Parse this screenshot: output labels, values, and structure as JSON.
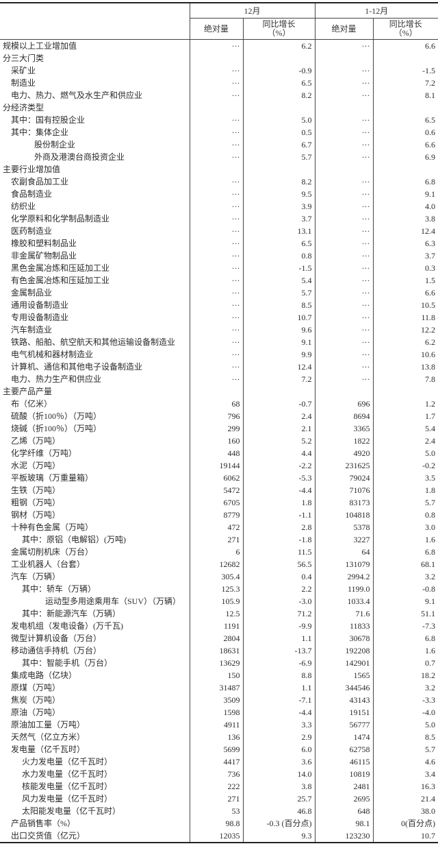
{
  "header": {
    "group_month": "12月",
    "group_ytd": "1-12月",
    "col_abs": "绝对量",
    "col_yoy_line1": "同比增长",
    "col_yoy_line2": "（%）"
  },
  "rows": [
    {
      "label": "规模以上工业增加值",
      "level": 0,
      "m_abs": "···",
      "m_yoy": "6.2",
      "y_abs": "···",
      "y_yoy": "6.6"
    },
    {
      "label": "分三大门类",
      "level": 0,
      "m_abs": "",
      "m_yoy": "",
      "y_abs": "",
      "y_yoy": ""
    },
    {
      "label": "采矿业",
      "level": 1,
      "m_abs": "···",
      "m_yoy": "-0.9",
      "y_abs": "···",
      "y_yoy": "-1.5"
    },
    {
      "label": "制造业",
      "level": 1,
      "m_abs": "···",
      "m_yoy": "6.5",
      "y_abs": "···",
      "y_yoy": "7.2"
    },
    {
      "label": "电力、热力、燃气及水生产和供应业",
      "level": 1,
      "m_abs": "···",
      "m_yoy": "8.2",
      "y_abs": "···",
      "y_yoy": "8.1"
    },
    {
      "label": "分经济类型",
      "level": 0,
      "m_abs": "",
      "m_yoy": "",
      "y_abs": "",
      "y_yoy": ""
    },
    {
      "label": "其中：国有控股企业",
      "level": 1,
      "m_abs": "···",
      "m_yoy": "5.0",
      "y_abs": "···",
      "y_yoy": "6.5"
    },
    {
      "label": "其中：集体企业",
      "level": 1,
      "m_abs": "···",
      "m_yoy": "0.5",
      "y_abs": "···",
      "y_yoy": "0.6"
    },
    {
      "label": "股份制企业",
      "level": 3,
      "m_abs": "···",
      "m_yoy": "6.7",
      "y_abs": "···",
      "y_yoy": "6.6"
    },
    {
      "label": "外商及港澳台商投资企业",
      "level": 3,
      "m_abs": "···",
      "m_yoy": "5.7",
      "y_abs": "···",
      "y_yoy": "6.9"
    },
    {
      "label": "主要行业增加值",
      "level": 0,
      "m_abs": "",
      "m_yoy": "",
      "y_abs": "",
      "y_yoy": ""
    },
    {
      "label": "农副食品加工业",
      "level": 1,
      "m_abs": "···",
      "m_yoy": "8.2",
      "y_abs": "···",
      "y_yoy": "6.8"
    },
    {
      "label": "食品制造业",
      "level": 1,
      "m_abs": "···",
      "m_yoy": "9.5",
      "y_abs": "···",
      "y_yoy": "9.1"
    },
    {
      "label": "纺织业",
      "level": 1,
      "m_abs": "···",
      "m_yoy": "3.9",
      "y_abs": "···",
      "y_yoy": "4.0"
    },
    {
      "label": "化学原料和化学制品制造业",
      "level": 1,
      "m_abs": "···",
      "m_yoy": "3.7",
      "y_abs": "···",
      "y_yoy": "3.8"
    },
    {
      "label": "医药制造业",
      "level": 1,
      "m_abs": "···",
      "m_yoy": "13.1",
      "y_abs": "···",
      "y_yoy": "12.4"
    },
    {
      "label": "橡胶和塑料制品业",
      "level": 1,
      "m_abs": "···",
      "m_yoy": "6.5",
      "y_abs": "···",
      "y_yoy": "6.3"
    },
    {
      "label": "非金属矿物制品业",
      "level": 1,
      "m_abs": "···",
      "m_yoy": "0.8",
      "y_abs": "···",
      "y_yoy": "3.7"
    },
    {
      "label": "黑色金属冶炼和压延加工业",
      "level": 1,
      "m_abs": "···",
      "m_yoy": "-1.5",
      "y_abs": "···",
      "y_yoy": "0.3"
    },
    {
      "label": "有色金属冶炼和压延加工业",
      "level": 1,
      "m_abs": "···",
      "m_yoy": "5.4",
      "y_abs": "···",
      "y_yoy": "1.5"
    },
    {
      "label": "金属制品业",
      "level": 1,
      "m_abs": "···",
      "m_yoy": "5.7",
      "y_abs": "···",
      "y_yoy": "6.6"
    },
    {
      "label": "通用设备制造业",
      "level": 1,
      "m_abs": "···",
      "m_yoy": "8.5",
      "y_abs": "···",
      "y_yoy": "10.5"
    },
    {
      "label": "专用设备制造业",
      "level": 1,
      "m_abs": "···",
      "m_yoy": "10.7",
      "y_abs": "···",
      "y_yoy": "11.8"
    },
    {
      "label": "汽车制造业",
      "level": 1,
      "m_abs": "···",
      "m_yoy": "9.6",
      "y_abs": "···",
      "y_yoy": "12.2"
    },
    {
      "label": "铁路、船舶、航空航天和其他运输设备制造业",
      "level": 1,
      "m_abs": "···",
      "m_yoy": "9.1",
      "y_abs": "···",
      "y_yoy": "6.2"
    },
    {
      "label": "电气机械和器材制造业",
      "level": 1,
      "m_abs": "···",
      "m_yoy": "9.9",
      "y_abs": "···",
      "y_yoy": "10.6"
    },
    {
      "label": "计算机、通信和其他电子设备制造业",
      "level": 1,
      "m_abs": "···",
      "m_yoy": "12.4",
      "y_abs": "···",
      "y_yoy": "13.8"
    },
    {
      "label": "电力、热力生产和供应业",
      "level": 1,
      "m_abs": "···",
      "m_yoy": "7.2",
      "y_abs": "···",
      "y_yoy": "7.8"
    },
    {
      "label": "主要产品产量",
      "level": 0,
      "m_abs": "",
      "m_yoy": "",
      "y_abs": "",
      "y_yoy": ""
    },
    {
      "label": "布（亿米）",
      "level": 1,
      "m_abs": "68",
      "m_yoy": "-0.7",
      "y_abs": "696",
      "y_yoy": "1.2"
    },
    {
      "label": "硫酸（折100％）（万吨）",
      "level": 1,
      "m_abs": "796",
      "m_yoy": "2.4",
      "y_abs": "8694",
      "y_yoy": "1.7"
    },
    {
      "label": "烧碱（折100％）（万吨）",
      "level": 1,
      "m_abs": "299",
      "m_yoy": "2.1",
      "y_abs": "3365",
      "y_yoy": "5.4"
    },
    {
      "label": "乙烯（万吨）",
      "level": 1,
      "m_abs": "160",
      "m_yoy": "5.2",
      "y_abs": "1822",
      "y_yoy": "2.4"
    },
    {
      "label": "化学纤维（万吨）",
      "level": 1,
      "m_abs": "448",
      "m_yoy": "4.4",
      "y_abs": "4920",
      "y_yoy": "5.0"
    },
    {
      "label": "水泥（万吨）",
      "level": 1,
      "m_abs": "19144",
      "m_yoy": "-2.2",
      "y_abs": "231625",
      "y_yoy": "-0.2"
    },
    {
      "label": "平板玻璃（万重量箱）",
      "level": 1,
      "m_abs": "6062",
      "m_yoy": "-5.3",
      "y_abs": "79024",
      "y_yoy": "3.5"
    },
    {
      "label": "生铁（万吨）",
      "level": 1,
      "m_abs": "5472",
      "m_yoy": "-4.4",
      "y_abs": "71076",
      "y_yoy": "1.8"
    },
    {
      "label": "粗钢（万吨）",
      "level": 1,
      "m_abs": "6705",
      "m_yoy": "1.8",
      "y_abs": "83173",
      "y_yoy": "5.7"
    },
    {
      "label": "钢材（万吨）",
      "level": 1,
      "m_abs": "8779",
      "m_yoy": "-1.1",
      "y_abs": "104818",
      "y_yoy": "0.8"
    },
    {
      "label": "十种有色金属（万吨）",
      "level": 1,
      "m_abs": "472",
      "m_yoy": "2.8",
      "y_abs": "5378",
      "y_yoy": "3.0"
    },
    {
      "label": "其中：原铝（电解铝）(万吨)",
      "level": 2,
      "m_abs": "271",
      "m_yoy": "-1.8",
      "y_abs": "3227",
      "y_yoy": "1.6"
    },
    {
      "label": "金属切削机床（万台）",
      "level": 1,
      "m_abs": "6",
      "m_yoy": "11.5",
      "y_abs": "64",
      "y_yoy": "6.8"
    },
    {
      "label": "工业机器人（台套）",
      "level": 1,
      "m_abs": "12682",
      "m_yoy": "56.5",
      "y_abs": "131079",
      "y_yoy": "68.1"
    },
    {
      "label": "汽车（万辆）",
      "level": 1,
      "m_abs": "305.4",
      "m_yoy": "0.4",
      "y_abs": "2994.2",
      "y_yoy": "3.2"
    },
    {
      "label": "其中：轿车（万辆）",
      "level": 2,
      "m_abs": "125.3",
      "m_yoy": "2.2",
      "y_abs": "1199.0",
      "y_yoy": "-0.8"
    },
    {
      "label": "运动型多用途乘用车（SUV）（万辆）",
      "level": 4,
      "m_abs": "105.9",
      "m_yoy": "-3.0",
      "y_abs": "1033.4",
      "y_yoy": "9.1"
    },
    {
      "label": "其中：新能源汽车（万辆）",
      "level": 2,
      "m_abs": "12.5",
      "m_yoy": "71.2",
      "y_abs": "71.6",
      "y_yoy": "51.1"
    },
    {
      "label": "发电机组（发电设备）(万千瓦)",
      "level": 1,
      "m_abs": "1191",
      "m_yoy": "-9.9",
      "y_abs": "11833",
      "y_yoy": "-7.3"
    },
    {
      "label": "微型计算机设备（万台）",
      "level": 1,
      "m_abs": "2804",
      "m_yoy": "1.1",
      "y_abs": "30678",
      "y_yoy": "6.8"
    },
    {
      "label": "移动通信手持机（万台）",
      "level": 1,
      "m_abs": "18631",
      "m_yoy": "-13.7",
      "y_abs": "192208",
      "y_yoy": "1.6"
    },
    {
      "label": "其中：智能手机（万台）",
      "level": 2,
      "m_abs": "13629",
      "m_yoy": "-6.9",
      "y_abs": "142901",
      "y_yoy": "0.7"
    },
    {
      "label": "集成电路（亿块）",
      "level": 1,
      "m_abs": "150",
      "m_yoy": "8.8",
      "y_abs": "1565",
      "y_yoy": "18.2"
    },
    {
      "label": "原煤（万吨）",
      "level": 1,
      "m_abs": "31487",
      "m_yoy": "1.1",
      "y_abs": "344546",
      "y_yoy": "3.2"
    },
    {
      "label": "焦炭（万吨）",
      "level": 1,
      "m_abs": "3509",
      "m_yoy": "-7.1",
      "y_abs": "43143",
      "y_yoy": "-3.3"
    },
    {
      "label": "原油（万吨）",
      "level": 1,
      "m_abs": "1598",
      "m_yoy": "-4.4",
      "y_abs": "19151",
      "y_yoy": "-4.0"
    },
    {
      "label": "原油加工量（万吨）",
      "level": 1,
      "m_abs": "4911",
      "m_yoy": "3.3",
      "y_abs": "56777",
      "y_yoy": "5.0"
    },
    {
      "label": "天然气（亿立方米）",
      "level": 1,
      "m_abs": "136",
      "m_yoy": "2.9",
      "y_abs": "1474",
      "y_yoy": "8.5"
    },
    {
      "label": "发电量（亿千瓦时）",
      "level": 1,
      "m_abs": "5699",
      "m_yoy": "6.0",
      "y_abs": "62758",
      "y_yoy": "5.7"
    },
    {
      "label": "火力发电量（亿千瓦时）",
      "level": 2,
      "m_abs": "4417",
      "m_yoy": "3.6",
      "y_abs": "46115",
      "y_yoy": "4.6"
    },
    {
      "label": "水力发电量（亿千瓦时）",
      "level": 2,
      "m_abs": "736",
      "m_yoy": "14.0",
      "y_abs": "10819",
      "y_yoy": "3.4"
    },
    {
      "label": "核能发电量（亿千瓦时）",
      "level": 2,
      "m_abs": "222",
      "m_yoy": "3.8",
      "y_abs": "2481",
      "y_yoy": "16.3"
    },
    {
      "label": "风力发电量（亿千瓦时）",
      "level": 2,
      "m_abs": "271",
      "m_yoy": "25.7",
      "y_abs": "2695",
      "y_yoy": "21.4"
    },
    {
      "label": "太阳能发电量（亿千瓦时）",
      "level": 2,
      "m_abs": "53",
      "m_yoy": "46.8",
      "y_abs": "648",
      "y_yoy": "38.0"
    },
    {
      "label": "产品销售率（%）",
      "level": 1,
      "m_abs": "98.8",
      "m_yoy": "-0.3 (百分点)",
      "y_abs": "98.1",
      "y_yoy": "0(百分点)"
    },
    {
      "label": "出口交货值（亿元）",
      "level": 1,
      "m_abs": "12035",
      "m_yoy": "9.3",
      "y_abs": "123230",
      "y_yoy": "10.7"
    }
  ]
}
